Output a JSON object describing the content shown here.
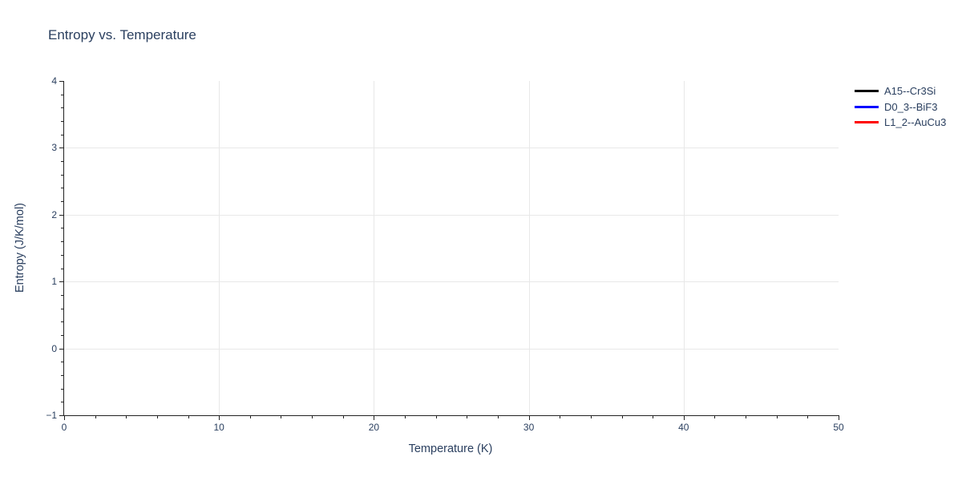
{
  "chart_data": {
    "type": "line",
    "title": "Entropy vs. Temperature",
    "xlabel": "Temperature (K)",
    "ylabel": "Entropy (J/K/mol)",
    "xlim": [
      0,
      50
    ],
    "ylim": [
      -1,
      4
    ],
    "x_ticks": [
      0,
      10,
      20,
      30,
      40,
      50
    ],
    "y_ticks": [
      -1,
      0,
      1,
      2,
      3,
      4
    ],
    "x_minor_step": 2,
    "y_minor_step": 0.2,
    "grid": true,
    "background": "#ffffff",
    "grid_color": "#e8e8e8",
    "axis_color": "#222222",
    "text_color": "#2a3f5f",
    "legend_position": "top-right-outside",
    "series": [
      {
        "name": "A15--Cr3Si",
        "color": "#000000",
        "x": [],
        "y": []
      },
      {
        "name": "D0_3--BiF3",
        "color": "#0000ff",
        "x": [],
        "y": []
      },
      {
        "name": "L1_2--AuCu3",
        "color": "#ff0000",
        "x": [],
        "y": []
      }
    ]
  }
}
